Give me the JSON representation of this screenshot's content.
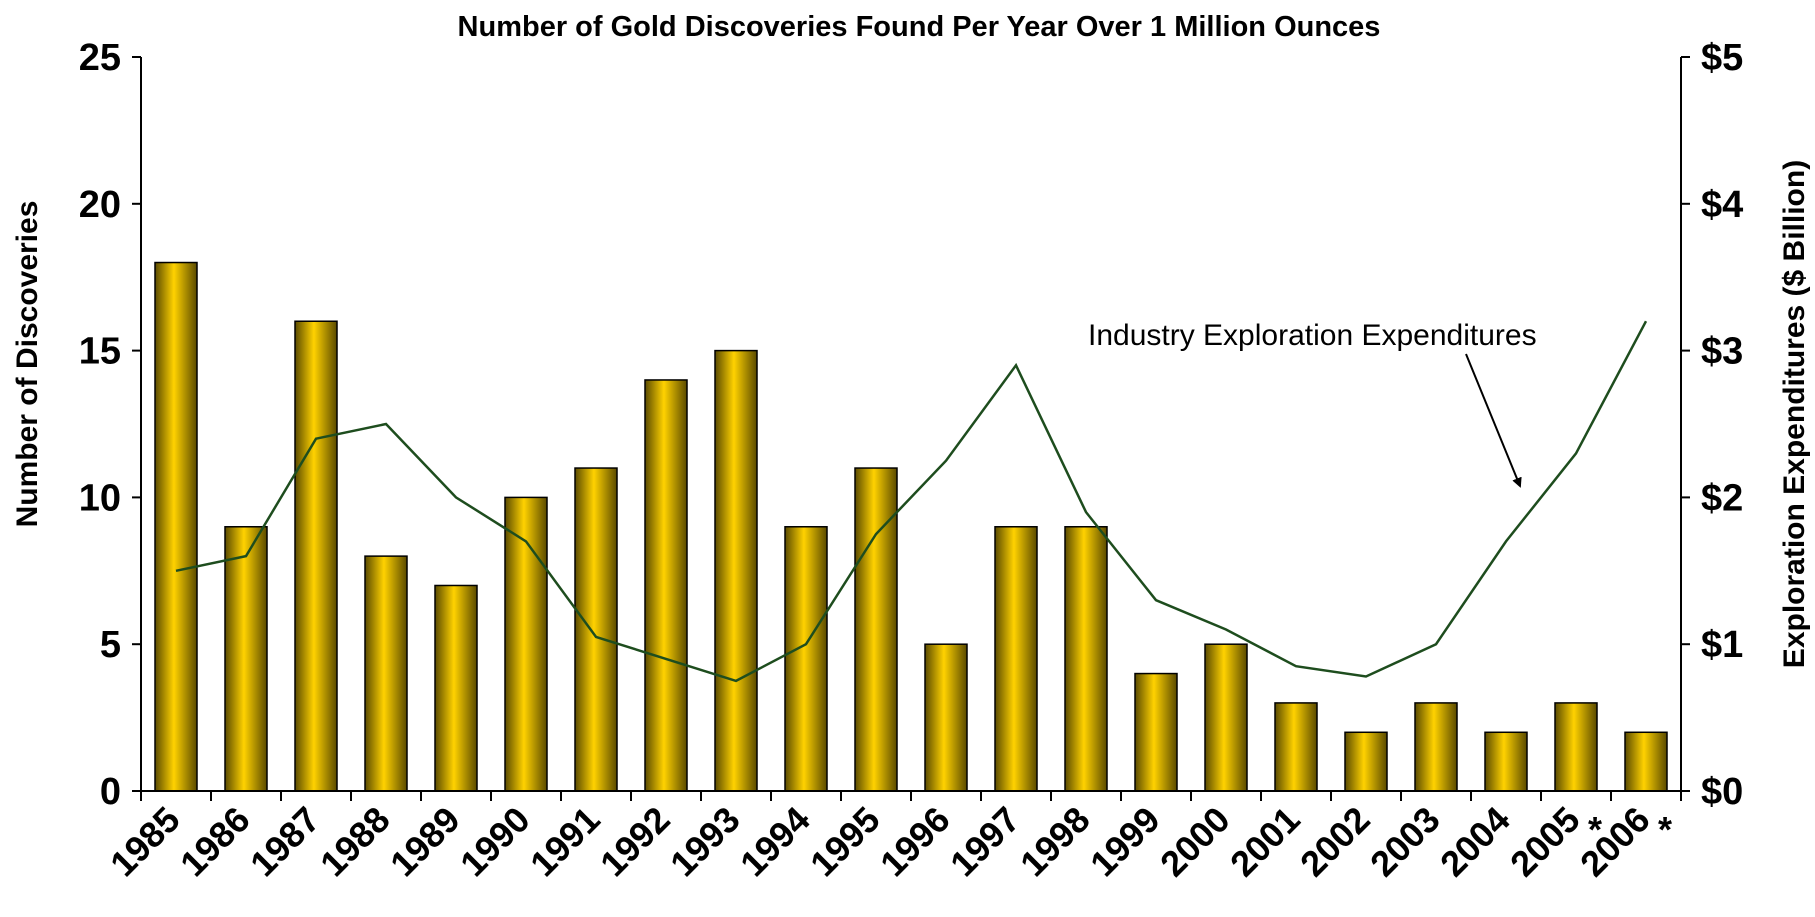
{
  "chart_data": {
    "type": "bar",
    "title": "Number of Gold Discoveries Found Per Year Over 1 Million Ounces",
    "ylabel": "Number of Discoveries",
    "y2label": "Exploration Expenditures ($ Billion)",
    "ylim": [
      0,
      25
    ],
    "y2lim": [
      0,
      5
    ],
    "yticks": [
      "0",
      "5",
      "10",
      "15",
      "20",
      "25"
    ],
    "y2ticks": [
      "$0",
      "$1",
      "$2",
      "$3",
      "$4",
      "$5"
    ],
    "categories": [
      "1985",
      "1986",
      "1987",
      "1988",
      "1989",
      "1990",
      "1991",
      "1992",
      "1993",
      "1994",
      "1995",
      "1996",
      "1997",
      "1998",
      "1999",
      "2000",
      "2001",
      "2002",
      "2003",
      "2004",
      "2005",
      "2006"
    ],
    "category_marks": [
      "",
      "",
      "",
      "",
      "",
      "",
      "",
      "",
      "",
      "",
      "",
      "",
      "",
      "",
      "",
      "",
      "",
      "",
      "",
      "",
      "*",
      "*"
    ],
    "series": [
      {
        "type": "bar",
        "axis": "left",
        "values": [
          18,
          9,
          16,
          8,
          7,
          10,
          11,
          14,
          15,
          9,
          11,
          5,
          9,
          9,
          4,
          5,
          3,
          2,
          3,
          2,
          3,
          2
        ]
      },
      {
        "type": "line",
        "axis": "right",
        "values": [
          1.5,
          1.6,
          2.4,
          2.5,
          2.0,
          1.7,
          1.05,
          0.9,
          0.75,
          1.0,
          1.75,
          2.25,
          2.9,
          1.9,
          1.3,
          1.1,
          0.85,
          0.78,
          1.0,
          1.7,
          2.3,
          3.2
        ]
      }
    ],
    "annotation": "Industry Exploration Expenditures",
    "grid": false,
    "colors": {
      "bar_light": "#FFD200",
      "bar_dark": "#5A4A00",
      "line": "#1E4D1E",
      "axis": "#000000"
    }
  }
}
